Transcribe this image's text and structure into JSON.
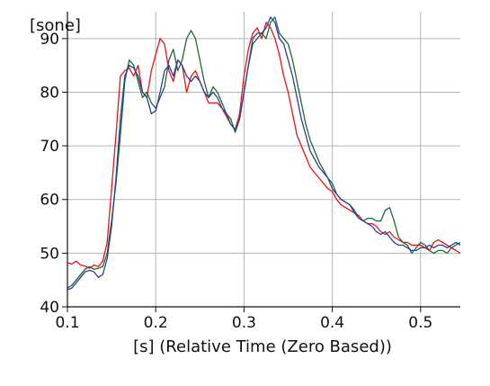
{
  "chart_data": {
    "type": "line",
    "ylabel": "[sone]",
    "xlabel": "[s] (Relative Time (Zero Based))",
    "xlim": [
      0.1,
      0.545
    ],
    "ylim": [
      40,
      95
    ],
    "xticks": [
      "0.1",
      "0.2",
      "0.3",
      "0.4",
      "0.5"
    ],
    "yticks": [
      "40",
      "50",
      "60",
      "70",
      "80",
      "90"
    ],
    "grid": "on",
    "colors": {
      "red": "#ee1111",
      "green": "#1e6b2e",
      "blue": "#2a3fa0",
      "grid": "#b4b4b4",
      "axis": "#111111"
    },
    "series": [
      {
        "color_key": "red",
        "points": [
          [
            0.1,
            48.2
          ],
          [
            0.105,
            48.0
          ],
          [
            0.11,
            48.5
          ],
          [
            0.115,
            47.8
          ],
          [
            0.12,
            47.6
          ],
          [
            0.125,
            47.2
          ],
          [
            0.13,
            47.8
          ],
          [
            0.135,
            47.5
          ],
          [
            0.14,
            48.5
          ],
          [
            0.145,
            52
          ],
          [
            0.15,
            62
          ],
          [
            0.155,
            72
          ],
          [
            0.16,
            83
          ],
          [
            0.165,
            84
          ],
          [
            0.17,
            84.5
          ],
          [
            0.175,
            83
          ],
          [
            0.18,
            85
          ],
          [
            0.185,
            80
          ],
          [
            0.19,
            79
          ],
          [
            0.195,
            84
          ],
          [
            0.2,
            87
          ],
          [
            0.205,
            90
          ],
          [
            0.21,
            89
          ],
          [
            0.215,
            84
          ],
          [
            0.22,
            82
          ],
          [
            0.225,
            86
          ],
          [
            0.23,
            85
          ],
          [
            0.235,
            80
          ],
          [
            0.24,
            83
          ],
          [
            0.245,
            84
          ],
          [
            0.25,
            82
          ],
          [
            0.255,
            80
          ],
          [
            0.26,
            78
          ],
          [
            0.265,
            78
          ],
          [
            0.27,
            78
          ],
          [
            0.275,
            77
          ],
          [
            0.28,
            75.5
          ],
          [
            0.285,
            74
          ],
          [
            0.29,
            73
          ],
          [
            0.295,
            76
          ],
          [
            0.3,
            83
          ],
          [
            0.305,
            88
          ],
          [
            0.31,
            91
          ],
          [
            0.315,
            92
          ],
          [
            0.32,
            90
          ],
          [
            0.325,
            93
          ],
          [
            0.33,
            92
          ],
          [
            0.335,
            90
          ],
          [
            0.34,
            87
          ],
          [
            0.345,
            83
          ],
          [
            0.35,
            80
          ],
          [
            0.355,
            76
          ],
          [
            0.36,
            72
          ],
          [
            0.365,
            70
          ],
          [
            0.37,
            68
          ],
          [
            0.375,
            66
          ],
          [
            0.38,
            65
          ],
          [
            0.385,
            64
          ],
          [
            0.39,
            63
          ],
          [
            0.395,
            62
          ],
          [
            0.4,
            61.5
          ],
          [
            0.405,
            60
          ],
          [
            0.41,
            59
          ],
          [
            0.415,
            58.5
          ],
          [
            0.42,
            58
          ],
          [
            0.425,
            57.5
          ],
          [
            0.43,
            57
          ],
          [
            0.435,
            56
          ],
          [
            0.44,
            55.5
          ],
          [
            0.445,
            55.5
          ],
          [
            0.45,
            55
          ],
          [
            0.455,
            54
          ],
          [
            0.46,
            53.5
          ],
          [
            0.465,
            54
          ],
          [
            0.47,
            53
          ],
          [
            0.475,
            52.5
          ],
          [
            0.48,
            52
          ],
          [
            0.485,
            52
          ],
          [
            0.49,
            51.5
          ],
          [
            0.495,
            51.5
          ],
          [
            0.5,
            51.5
          ],
          [
            0.505,
            51
          ],
          [
            0.51,
            50.5
          ],
          [
            0.515,
            52
          ],
          [
            0.52,
            52.5
          ],
          [
            0.525,
            52
          ],
          [
            0.53,
            51.5
          ],
          [
            0.535,
            51
          ],
          [
            0.54,
            50.5
          ],
          [
            0.545,
            50
          ]
        ]
      },
      {
        "color_key": "green",
        "points": [
          [
            0.1,
            43.5
          ],
          [
            0.105,
            44
          ],
          [
            0.11,
            45
          ],
          [
            0.115,
            46
          ],
          [
            0.12,
            47
          ],
          [
            0.125,
            47.5
          ],
          [
            0.13,
            47
          ],
          [
            0.135,
            47.2
          ],
          [
            0.14,
            47.5
          ],
          [
            0.145,
            50
          ],
          [
            0.15,
            56
          ],
          [
            0.155,
            63
          ],
          [
            0.16,
            72
          ],
          [
            0.165,
            82
          ],
          [
            0.17,
            86
          ],
          [
            0.175,
            85
          ],
          [
            0.18,
            82
          ],
          [
            0.185,
            79
          ],
          [
            0.19,
            80
          ],
          [
            0.195,
            78
          ],
          [
            0.2,
            77
          ],
          [
            0.205,
            79
          ],
          [
            0.21,
            81
          ],
          [
            0.215,
            86
          ],
          [
            0.22,
            88
          ],
          [
            0.225,
            84
          ],
          [
            0.23,
            86
          ],
          [
            0.235,
            90
          ],
          [
            0.24,
            91.5
          ],
          [
            0.245,
            90
          ],
          [
            0.25,
            86
          ],
          [
            0.255,
            82
          ],
          [
            0.26,
            79
          ],
          [
            0.265,
            81
          ],
          [
            0.27,
            80
          ],
          [
            0.275,
            78
          ],
          [
            0.28,
            76
          ],
          [
            0.285,
            75
          ],
          [
            0.29,
            72.5
          ],
          [
            0.295,
            75
          ],
          [
            0.3,
            80
          ],
          [
            0.305,
            85
          ],
          [
            0.31,
            89
          ],
          [
            0.315,
            90
          ],
          [
            0.32,
            91
          ],
          [
            0.325,
            90
          ],
          [
            0.33,
            93
          ],
          [
            0.335,
            94
          ],
          [
            0.34,
            91
          ],
          [
            0.345,
            90
          ],
          [
            0.35,
            89
          ],
          [
            0.355,
            86
          ],
          [
            0.36,
            82
          ],
          [
            0.365,
            78
          ],
          [
            0.37,
            74
          ],
          [
            0.375,
            71
          ],
          [
            0.38,
            69
          ],
          [
            0.385,
            67
          ],
          [
            0.39,
            65.5
          ],
          [
            0.395,
            64
          ],
          [
            0.4,
            63
          ],
          [
            0.405,
            61
          ],
          [
            0.41,
            60
          ],
          [
            0.415,
            59.5
          ],
          [
            0.42,
            59
          ],
          [
            0.425,
            58
          ],
          [
            0.43,
            56.5
          ],
          [
            0.435,
            56
          ],
          [
            0.44,
            56.5
          ],
          [
            0.445,
            56.5
          ],
          [
            0.45,
            56
          ],
          [
            0.455,
            56
          ],
          [
            0.46,
            58
          ],
          [
            0.465,
            58.5
          ],
          [
            0.47,
            56
          ],
          [
            0.475,
            53
          ],
          [
            0.48,
            52
          ],
          [
            0.485,
            51.5
          ],
          [
            0.49,
            50
          ],
          [
            0.495,
            51
          ],
          [
            0.5,
            52
          ],
          [
            0.505,
            51.5
          ],
          [
            0.51,
            50.5
          ],
          [
            0.515,
            50
          ],
          [
            0.52,
            50.5
          ],
          [
            0.525,
            50.5
          ],
          [
            0.53,
            50
          ],
          [
            0.535,
            51
          ],
          [
            0.54,
            51.5
          ],
          [
            0.545,
            52
          ]
        ]
      },
      {
        "color_key": "blue",
        "points": [
          [
            0.1,
            43.2
          ],
          [
            0.105,
            43.5
          ],
          [
            0.11,
            44.5
          ],
          [
            0.115,
            45.5
          ],
          [
            0.12,
            46.5
          ],
          [
            0.125,
            46.8
          ],
          [
            0.13,
            46.5
          ],
          [
            0.135,
            45.5
          ],
          [
            0.14,
            46
          ],
          [
            0.145,
            49
          ],
          [
            0.15,
            55
          ],
          [
            0.155,
            64
          ],
          [
            0.16,
            75
          ],
          [
            0.165,
            83
          ],
          [
            0.17,
            85
          ],
          [
            0.175,
            84.5
          ],
          [
            0.18,
            83
          ],
          [
            0.185,
            80
          ],
          [
            0.19,
            79
          ],
          [
            0.195,
            76
          ],
          [
            0.2,
            76.5
          ],
          [
            0.205,
            80
          ],
          [
            0.21,
            84
          ],
          [
            0.215,
            85
          ],
          [
            0.22,
            83
          ],
          [
            0.225,
            86
          ],
          [
            0.23,
            85
          ],
          [
            0.235,
            83
          ],
          [
            0.24,
            82
          ],
          [
            0.245,
            83
          ],
          [
            0.25,
            82
          ],
          [
            0.255,
            80
          ],
          [
            0.26,
            79
          ],
          [
            0.265,
            80
          ],
          [
            0.27,
            79
          ],
          [
            0.275,
            77
          ],
          [
            0.28,
            76
          ],
          [
            0.285,
            74
          ],
          [
            0.29,
            73
          ],
          [
            0.295,
            75
          ],
          [
            0.3,
            80
          ],
          [
            0.305,
            85
          ],
          [
            0.31,
            90
          ],
          [
            0.315,
            91
          ],
          [
            0.32,
            91
          ],
          [
            0.325,
            92
          ],
          [
            0.33,
            94
          ],
          [
            0.335,
            93
          ],
          [
            0.34,
            90
          ],
          [
            0.345,
            89
          ],
          [
            0.35,
            86
          ],
          [
            0.355,
            83
          ],
          [
            0.36,
            79
          ],
          [
            0.365,
            75
          ],
          [
            0.37,
            72
          ],
          [
            0.375,
            69
          ],
          [
            0.38,
            67.5
          ],
          [
            0.385,
            66
          ],
          [
            0.39,
            65
          ],
          [
            0.395,
            64
          ],
          [
            0.4,
            62
          ],
          [
            0.405,
            61
          ],
          [
            0.41,
            60
          ],
          [
            0.415,
            59.5
          ],
          [
            0.42,
            59
          ],
          [
            0.425,
            57.5
          ],
          [
            0.43,
            56.5
          ],
          [
            0.435,
            56
          ],
          [
            0.44,
            55.5
          ],
          [
            0.445,
            55
          ],
          [
            0.45,
            54
          ],
          [
            0.455,
            53.5
          ],
          [
            0.46,
            54
          ],
          [
            0.465,
            53
          ],
          [
            0.47,
            52
          ],
          [
            0.475,
            51.5
          ],
          [
            0.48,
            51.5
          ],
          [
            0.485,
            51
          ],
          [
            0.49,
            50.5
          ],
          [
            0.495,
            50.5
          ],
          [
            0.5,
            51
          ],
          [
            0.505,
            51
          ],
          [
            0.51,
            51.5
          ],
          [
            0.515,
            51
          ],
          [
            0.52,
            51.5
          ],
          [
            0.525,
            51.5
          ],
          [
            0.53,
            51
          ],
          [
            0.535,
            51.5
          ],
          [
            0.54,
            52
          ],
          [
            0.545,
            51.5
          ]
        ]
      }
    ]
  }
}
